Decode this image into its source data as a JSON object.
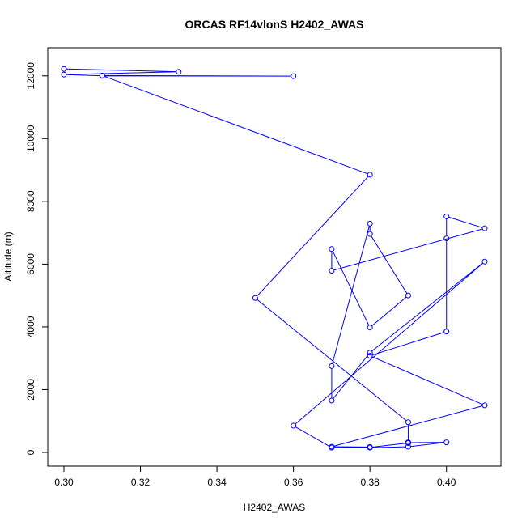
{
  "chart_data": {
    "type": "line",
    "title": "ORCAS RF14vlonS H2402_AWAS",
    "xlabel": "H2402_AWAS",
    "ylabel": "Altitude (m)",
    "xlim": [
      0.3,
      0.41
    ],
    "ylim": [
      0,
      12200
    ],
    "x_ticks": [
      0.3,
      0.32,
      0.34,
      0.36,
      0.38,
      0.4
    ],
    "x_tick_labels": [
      "0.30",
      "0.32",
      "0.34",
      "0.36",
      "0.38",
      "0.40"
    ],
    "y_ticks": [
      0,
      2000,
      4000,
      6000,
      8000,
      10000,
      12000
    ],
    "y_tick_labels": [
      "0",
      "2000",
      "4000",
      "6000",
      "8000",
      "10000",
      "12000"
    ],
    "grid": false,
    "legend": "none",
    "color": "#0000ff",
    "series": [
      {
        "x": [
          0.3,
          0.33,
          0.3,
          0.31,
          0.36,
          0.31,
          0.38,
          0.35,
          0.39,
          0.39,
          0.39,
          0.39,
          0.39,
          0.4,
          0.39,
          0.38,
          0.37,
          0.36,
          0.41,
          0.38,
          0.37,
          0.37,
          0.38,
          0.38,
          0.39,
          0.38,
          0.37,
          0.37,
          0.41,
          0.4,
          0.4,
          0.4,
          0.38,
          0.41,
          0.37,
          0.38,
          0.38,
          0.39
        ],
        "y": [
          12220,
          12130,
          12040,
          12000,
          11990,
          12010,
          8850,
          4920,
          960,
          320,
          310,
          300,
          310,
          320,
          180,
          150,
          150,
          850,
          6080,
          3180,
          1650,
          2750,
          7290,
          6960,
          5000,
          3980,
          6480,
          5790,
          7140,
          7520,
          6820,
          3850,
          3080,
          1500,
          180,
          170,
          160,
          300
        ]
      }
    ]
  }
}
